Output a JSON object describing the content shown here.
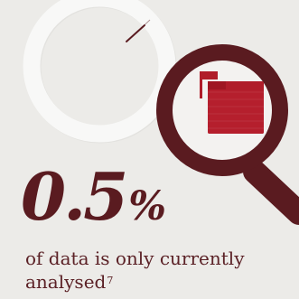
{
  "colors": {
    "background": "#ecebe8",
    "ring_light": "#f8f8f7",
    "ring_shadow": "#d9d9d6",
    "accent_dark": "#5a1b20",
    "accent_red": "#b01d2a",
    "lens_fill": "#f3f2f0"
  },
  "icons": {
    "donut": "donut-chart-icon",
    "magnifier": "magnifying-glass-icon",
    "folder": "folder-icon"
  },
  "stat": {
    "value": "0.5",
    "unit": "%",
    "percent": 0.5
  },
  "caption": {
    "text": "of data is only currently analysed",
    "footnote": "7"
  }
}
